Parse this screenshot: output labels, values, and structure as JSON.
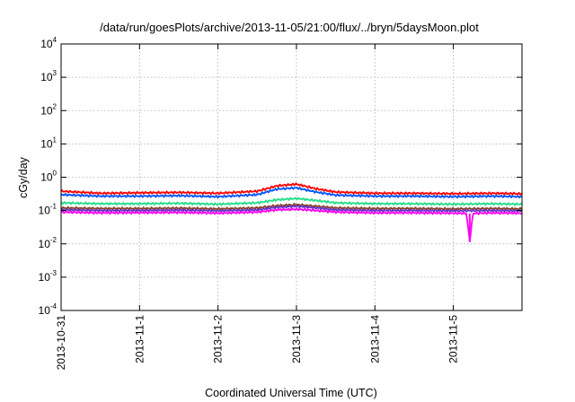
{
  "chart_data": {
    "type": "line",
    "title": "/data/run/goesPlots/archive/2013-11-05/21:00/flux/../bryn/5daysMoon.plot",
    "xlabel": "Coordinated Universal Time (UTC)",
    "ylabel": "cGy/day",
    "yscale": "log",
    "ylim": [
      0.0001,
      10000
    ],
    "y_ticks": [
      {
        "base": "10",
        "exp": "-4"
      },
      {
        "base": "10",
        "exp": "-3"
      },
      {
        "base": "10",
        "exp": "-2"
      },
      {
        "base": "10",
        "exp": "-1"
      },
      {
        "base": "10",
        "exp": "0"
      },
      {
        "base": "10",
        "exp": "1"
      },
      {
        "base": "10",
        "exp": "2"
      },
      {
        "base": "10",
        "exp": "3"
      },
      {
        "base": "10",
        "exp": "4"
      }
    ],
    "x_ticks": [
      "2013-10-31",
      "2013-11-1",
      "2013-11-2",
      "2013-11-3",
      "2013-11-4",
      "2013-11-5"
    ],
    "xlim": [
      "2013-10-31T00:00",
      "2013-11-05T21:00"
    ],
    "grid": true,
    "legend": "none",
    "series": [
      {
        "color": "#ff0000",
        "x": [
          "2013-10-31T00:00",
          "2013-10-31T12:00",
          "2013-11-01T00:00",
          "2013-11-01T12:00",
          "2013-11-02T00:00",
          "2013-11-02T12:00",
          "2013-11-02T18:00",
          "2013-11-03T00:00",
          "2013-11-03T06:00",
          "2013-11-03T12:00",
          "2013-11-04T00:00",
          "2013-11-04T12:00",
          "2013-11-05T00:00",
          "2013-11-05T12:00",
          "2013-11-05T21:00"
        ],
        "values": [
          0.38,
          0.33,
          0.34,
          0.35,
          0.33,
          0.38,
          0.55,
          0.62,
          0.45,
          0.36,
          0.33,
          0.33,
          0.32,
          0.33,
          0.32
        ]
      },
      {
        "color": "#0055ff",
        "x": [
          "2013-10-31T00:00",
          "2013-10-31T12:00",
          "2013-11-01T00:00",
          "2013-11-01T12:00",
          "2013-11-02T00:00",
          "2013-11-02T12:00",
          "2013-11-02T18:00",
          "2013-11-03T00:00",
          "2013-11-03T06:00",
          "2013-11-03T12:00",
          "2013-11-04T00:00",
          "2013-11-04T12:00",
          "2013-11-05T00:00",
          "2013-11-05T12:00",
          "2013-11-05T21:00"
        ],
        "values": [
          0.3,
          0.27,
          0.27,
          0.28,
          0.26,
          0.3,
          0.44,
          0.48,
          0.36,
          0.29,
          0.27,
          0.27,
          0.26,
          0.27,
          0.26
        ]
      },
      {
        "color": "#22dd88",
        "x": [
          "2013-10-31T00:00",
          "2013-10-31T12:00",
          "2013-11-01T00:00",
          "2013-11-01T12:00",
          "2013-11-02T00:00",
          "2013-11-02T12:00",
          "2013-11-02T18:00",
          "2013-11-03T00:00",
          "2013-11-03T06:00",
          "2013-11-03T12:00",
          "2013-11-04T00:00",
          "2013-11-04T12:00",
          "2013-11-05T00:00",
          "2013-11-05T12:00",
          "2013-11-05T21:00"
        ],
        "values": [
          0.17,
          0.16,
          0.16,
          0.165,
          0.155,
          0.17,
          0.21,
          0.23,
          0.2,
          0.17,
          0.16,
          0.16,
          0.155,
          0.16,
          0.155
        ]
      },
      {
        "color": "#884422",
        "x": [
          "2013-10-31T00:00",
          "2013-10-31T12:00",
          "2013-11-01T00:00",
          "2013-11-01T12:00",
          "2013-11-02T00:00",
          "2013-11-02T12:00",
          "2013-11-02T18:00",
          "2013-11-03T00:00",
          "2013-11-03T06:00",
          "2013-11-03T12:00",
          "2013-11-04T00:00",
          "2013-11-04T12:00",
          "2013-11-05T00:00",
          "2013-11-05T12:00",
          "2013-11-05T21:00"
        ],
        "values": [
          0.12,
          0.115,
          0.115,
          0.118,
          0.112,
          0.12,
          0.14,
          0.15,
          0.135,
          0.12,
          0.115,
          0.115,
          0.112,
          0.115,
          0.112
        ]
      },
      {
        "color": "#6633cc",
        "x": [
          "2013-10-31T00:00",
          "2013-10-31T12:00",
          "2013-11-01T00:00",
          "2013-11-01T12:00",
          "2013-11-02T00:00",
          "2013-11-02T12:00",
          "2013-11-02T18:00",
          "2013-11-03T00:00",
          "2013-11-03T06:00",
          "2013-11-03T12:00",
          "2013-11-04T00:00",
          "2013-11-04T12:00",
          "2013-11-05T00:00",
          "2013-11-05T12:00",
          "2013-11-05T21:00"
        ],
        "values": [
          0.105,
          0.1,
          0.1,
          0.103,
          0.098,
          0.105,
          0.125,
          0.135,
          0.12,
          0.105,
          0.1,
          0.1,
          0.098,
          0.1,
          0.098
        ]
      },
      {
        "color": "#ff00ee",
        "x": [
          "2013-10-31T00:00",
          "2013-10-31T12:00",
          "2013-11-01T00:00",
          "2013-11-01T12:00",
          "2013-11-02T00:00",
          "2013-11-02T12:00",
          "2013-11-02T18:00",
          "2013-11-03T00:00",
          "2013-11-03T06:00",
          "2013-11-03T12:00",
          "2013-11-04T00:00",
          "2013-11-04T12:00",
          "2013-11-05T00:00",
          "2013-11-05T04:00",
          "2013-11-05T05:00",
          "2013-11-05T06:00",
          "2013-11-05T12:00",
          "2013-11-05T21:00"
        ],
        "values": [
          0.09,
          0.085,
          0.086,
          0.088,
          0.083,
          0.09,
          0.105,
          0.11,
          0.1,
          0.09,
          0.085,
          0.085,
          0.083,
          0.082,
          0.012,
          0.082,
          0.085,
          0.083
        ]
      }
    ]
  }
}
